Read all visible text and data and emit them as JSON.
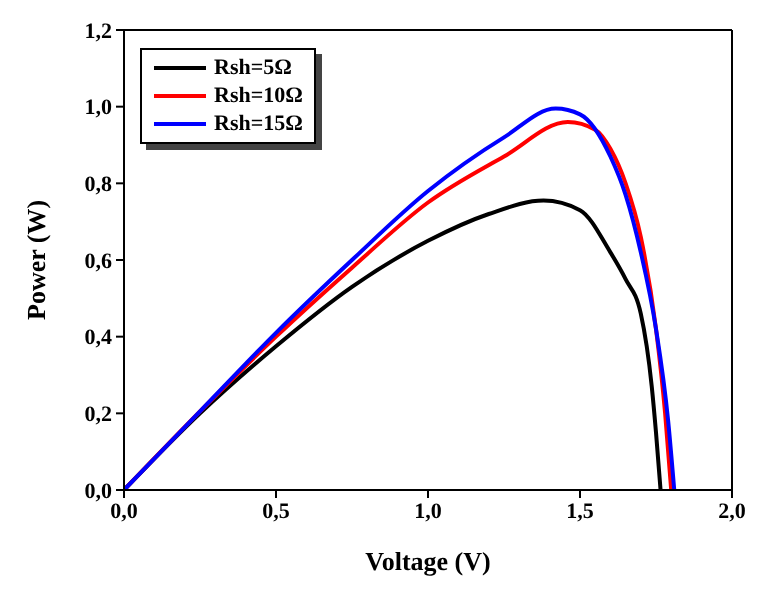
{
  "chart_data": {
    "type": "line",
    "xlabel": "Voltage (V)",
    "ylabel": "Power (W)",
    "xlim": [
      0,
      2
    ],
    "ylim": [
      0,
      1.2
    ],
    "xticks": [
      {
        "value": 0,
        "label": "0,0"
      },
      {
        "value": 0.5,
        "label": "0,5"
      },
      {
        "value": 1,
        "label": "1,0"
      },
      {
        "value": 1.5,
        "label": "1,5"
      },
      {
        "value": 2,
        "label": "2,0"
      }
    ],
    "yticks": [
      {
        "value": 0,
        "label": "0,0"
      },
      {
        "value": 0.2,
        "label": "0,2"
      },
      {
        "value": 0.4,
        "label": "0,4"
      },
      {
        "value": 0.6,
        "label": "0,6"
      },
      {
        "value": 0.8,
        "label": "0,8"
      },
      {
        "value": 1,
        "label": "1,0"
      },
      {
        "value": 1.2,
        "label": "1,2"
      }
    ],
    "legend": "top left",
    "marker": "none",
    "line_style": "solid",
    "grid": false,
    "series": [
      {
        "name": "Rsh=5Ω",
        "color": "#000000",
        "x": [
          0,
          0.25,
          0.5,
          0.75,
          1,
          1.2,
          1.38,
          1.5,
          1.6,
          1.65,
          1.7,
          1.736,
          1.75,
          1.765
        ],
        "values": [
          0,
          0.2,
          0.375,
          0.53,
          0.65,
          0.72,
          0.755,
          0.73,
          0.62,
          0.55,
          0.46,
          0.27,
          0.15,
          0
        ]
      },
      {
        "name": "Rsh=10Ω",
        "color": "#ff0000",
        "x": [
          0,
          0.25,
          0.5,
          0.75,
          1,
          1.25,
          1.46,
          1.55,
          1.6,
          1.65,
          1.7,
          1.75,
          1.78,
          1.8
        ],
        "values": [
          0,
          0.205,
          0.4,
          0.58,
          0.75,
          0.87,
          0.96,
          0.94,
          0.89,
          0.8,
          0.66,
          0.42,
          0.2,
          0
        ]
      },
      {
        "name": "Rsh=15Ω",
        "color": "#0000ff",
        "x": [
          0,
          0.25,
          0.5,
          0.75,
          1,
          1.25,
          1.42,
          1.5,
          1.6,
          1.65,
          1.7,
          1.75,
          1.79,
          1.81
        ],
        "values": [
          0,
          0.205,
          0.41,
          0.6,
          0.78,
          0.92,
          0.995,
          0.98,
          0.87,
          0.77,
          0.62,
          0.42,
          0.18,
          0
        ]
      }
    ]
  }
}
